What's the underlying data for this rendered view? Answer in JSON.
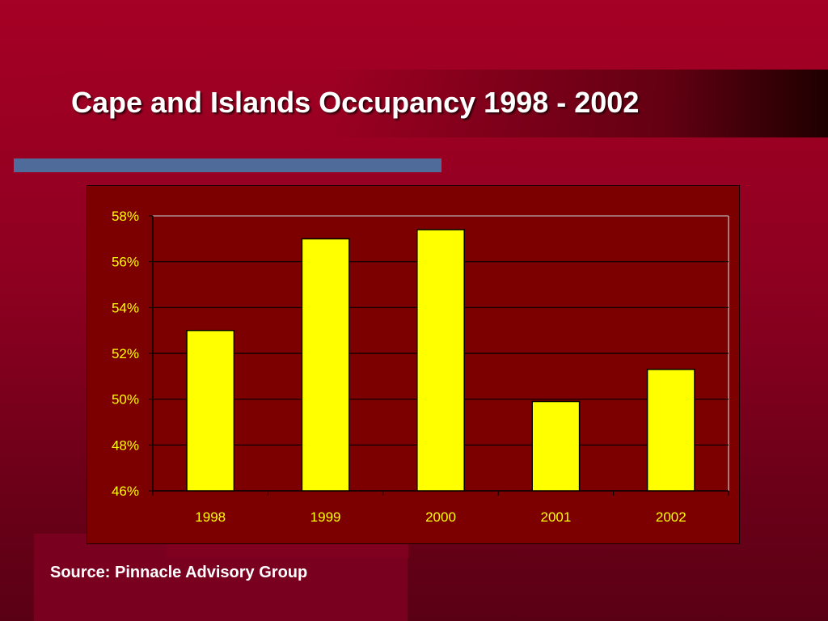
{
  "slide": {
    "title": "Cape and Islands Occupancy 1998 - 2002",
    "source": "Source: Pinnacle Advisory Group"
  },
  "colors": {
    "background": "#a50025",
    "plot_area": "#7d0000",
    "bar_fill": "#ffff00",
    "accent_rule": "#4e6b99",
    "axis_text": "#ffff00"
  },
  "chart_data": {
    "type": "bar",
    "categories": [
      "1998",
      "1999",
      "2000",
      "2001",
      "2002"
    ],
    "values": [
      53.0,
      57.0,
      57.4,
      49.9,
      51.3
    ],
    "value_unit": "%",
    "ylim": [
      46,
      58
    ],
    "yticks": [
      "46%",
      "48%",
      "50%",
      "52%",
      "54%",
      "56%",
      "58%"
    ],
    "ytick_values": [
      46,
      48,
      50,
      52,
      54,
      56,
      58
    ],
    "grid": true,
    "legend": "none",
    "title": "",
    "xlabel": "",
    "ylabel": ""
  }
}
